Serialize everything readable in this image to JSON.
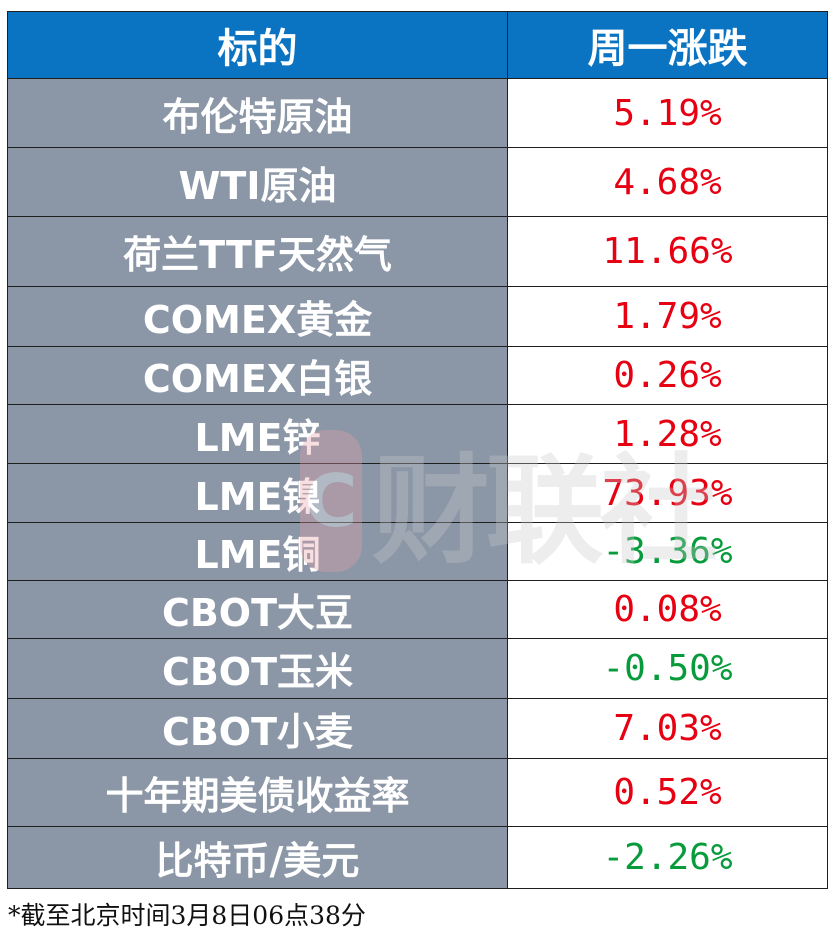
{
  "table": {
    "header": {
      "col_name": "标的",
      "col_change": "周一涨跌"
    },
    "rows": [
      {
        "name": "布伦特原油",
        "change": "5.19%",
        "direction": "up"
      },
      {
        "name": "WTI原油",
        "change": "4.68%",
        "direction": "up"
      },
      {
        "name": "荷兰TTF天然气",
        "change": "11.66%",
        "direction": "up"
      },
      {
        "name": "COMEX黄金",
        "change": "1.79%",
        "direction": "up"
      },
      {
        "name": "COMEX白银",
        "change": "0.26%",
        "direction": "up"
      },
      {
        "name": "LME锌",
        "change": "1.28%",
        "direction": "up"
      },
      {
        "name": "LME镍",
        "change": "73.93%",
        "direction": "up"
      },
      {
        "name": "LME铜",
        "change": "-3.36%",
        "direction": "down"
      },
      {
        "name": "CBOT大豆",
        "change": "0.08%",
        "direction": "up"
      },
      {
        "name": "CBOT玉米",
        "change": "-0.50%",
        "direction": "down"
      },
      {
        "name": "CBOT小麦",
        "change": "7.03%",
        "direction": "up"
      },
      {
        "name": "十年期美债收益率",
        "change": "0.52%",
        "direction": "up"
      },
      {
        "name": "比特币/美元",
        "change": "-2.26%",
        "direction": "down"
      }
    ]
  },
  "footnote": "*截至北京时间3月8日06点38分",
  "watermark": {
    "logo_glyph": "C",
    "text": "财联社"
  },
  "colors": {
    "header_bg": "#0a73c2",
    "name_cell_bg": "#8b97a7",
    "up": "#e60012",
    "down": "#079b3b"
  }
}
